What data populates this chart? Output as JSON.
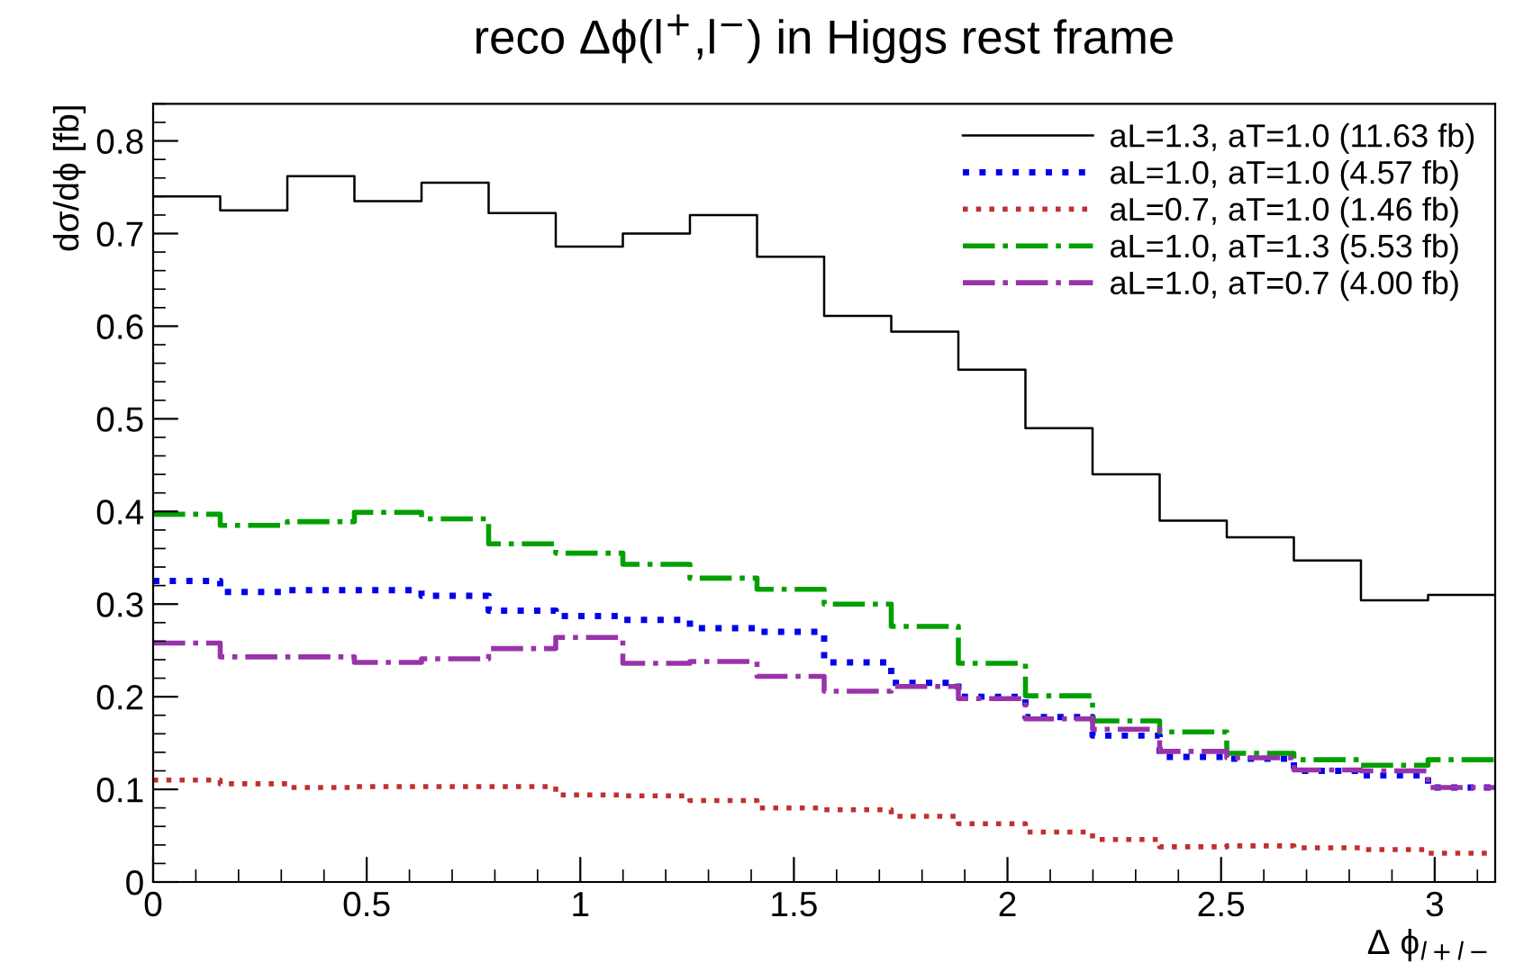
{
  "chart_data": {
    "type": "histogram",
    "title": "reco Δϕ(l$^{+}$,l$^{−}$) in Higgs rest frame",
    "xlabel": "Δ ϕ$_{l+l−}$",
    "ylabel": "dσ/dϕ [fb]",
    "bins": [
      0,
      0.1571,
      0.3142,
      0.4712,
      0.6283,
      0.7854,
      0.9425,
      1.0996,
      1.2566,
      1.4137,
      1.5708,
      1.7279,
      1.885,
      2.042,
      2.1991,
      2.3562,
      2.5133,
      2.6704,
      2.8274,
      2.9845,
      3.1416
    ],
    "series": [
      {
        "name": "aL=1.3, aT=1.0 (11.63 fb)",
        "color": "#000000",
        "line_style": "solid",
        "values": [
          0.74,
          0.725,
          0.762,
          0.735,
          0.755,
          0.722,
          0.686,
          0.7,
          0.72,
          0.675,
          0.611,
          0.594,
          0.553,
          0.49,
          0.44,
          0.39,
          0.372,
          0.347,
          0.304,
          0.31
        ]
      },
      {
        "name": "aL=1.0, aT=1.0 (4.57 fb)",
        "color": "#0000ee",
        "line_style": "dotted",
        "values": [
          0.325,
          0.313,
          0.315,
          0.315,
          0.309,
          0.293,
          0.287,
          0.283,
          0.274,
          0.27,
          0.237,
          0.215,
          0.2,
          0.178,
          0.158,
          0.135,
          0.133,
          0.12,
          0.115,
          0.102
        ]
      },
      {
        "name": "aL=0.7, aT=1.0 (1.46 fb)",
        "color": "#c03030",
        "line_style": "dotted",
        "values": [
          0.11,
          0.106,
          0.102,
          0.103,
          0.103,
          0.103,
          0.094,
          0.093,
          0.088,
          0.08,
          0.078,
          0.071,
          0.063,
          0.054,
          0.046,
          0.038,
          0.039,
          0.037,
          0.035,
          0.031
        ]
      },
      {
        "name": "aL=1.0, aT=1.3 (5.53 fb)",
        "color": "#00a000",
        "line_style": "dashdot",
        "values": [
          0.397,
          0.385,
          0.389,
          0.399,
          0.392,
          0.365,
          0.355,
          0.343,
          0.328,
          0.316,
          0.3,
          0.276,
          0.236,
          0.201,
          0.174,
          0.162,
          0.139,
          0.132,
          0.126,
          0.132
        ]
      },
      {
        "name": "aL=1.0, aT=0.7 (4.00 fb)",
        "color": "#9933aa",
        "line_style": "dashdot",
        "values": [
          0.258,
          0.243,
          0.243,
          0.237,
          0.241,
          0.252,
          0.264,
          0.236,
          0.238,
          0.222,
          0.206,
          0.211,
          0.198,
          0.176,
          0.165,
          0.141,
          0.134,
          0.121,
          0.12,
          0.102
        ]
      }
    ],
    "xlim": [
      0,
      3.1416
    ],
    "xticks": [
      0,
      0.5,
      1,
      1.5,
      2,
      2.5,
      3
    ],
    "ylim": [
      0,
      0.84
    ],
    "yticks": [
      0,
      0.1,
      0.2,
      0.3,
      0.4,
      0.5,
      0.6,
      0.7,
      0.8
    ],
    "grid": false,
    "legend": "top right"
  }
}
